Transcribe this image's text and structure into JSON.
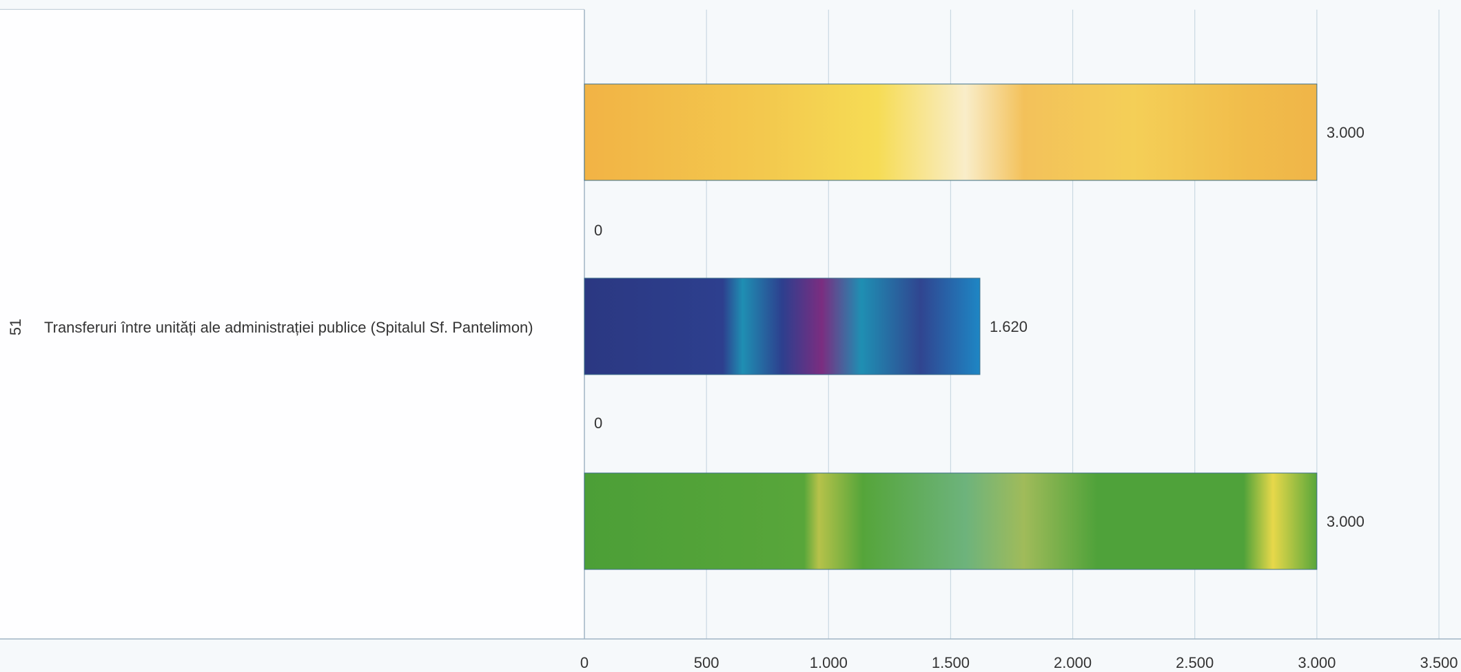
{
  "chart_data": {
    "type": "bar",
    "orientation": "horizontal",
    "category": {
      "code": "51",
      "label": "Transferuri între unități ale administrației publice (Spitalul Sf. Pantelimon)"
    },
    "series": [
      {
        "values": [
          3000
        ],
        "value_label": "3.000",
        "color": "#f0b545"
      },
      {
        "values": [
          0
        ],
        "value_label": "0",
        "color": "#e0e0e0"
      },
      {
        "values": [
          1620
        ],
        "value_label": "1.620",
        "color": "#2e3e8c"
      },
      {
        "values": [
          0
        ],
        "value_label": "0",
        "color": "#e0e0e0"
      },
      {
        "values": [
          3000
        ],
        "value_label": "3.000",
        "color": "#4fa23a"
      }
    ],
    "xlim": [
      0,
      3500
    ],
    "x_ticks": [
      {
        "value": 0,
        "label": "0"
      },
      {
        "value": 500,
        "label": "500"
      },
      {
        "value": 1000,
        "label": "1.000"
      },
      {
        "value": 1500,
        "label": "1.500"
      },
      {
        "value": 2000,
        "label": "2.000"
      },
      {
        "value": 2500,
        "label": "2.500"
      },
      {
        "value": 3000,
        "label": "3.000"
      },
      {
        "value": 3500,
        "label": "3.500"
      }
    ],
    "grid": true,
    "legend": "none"
  }
}
